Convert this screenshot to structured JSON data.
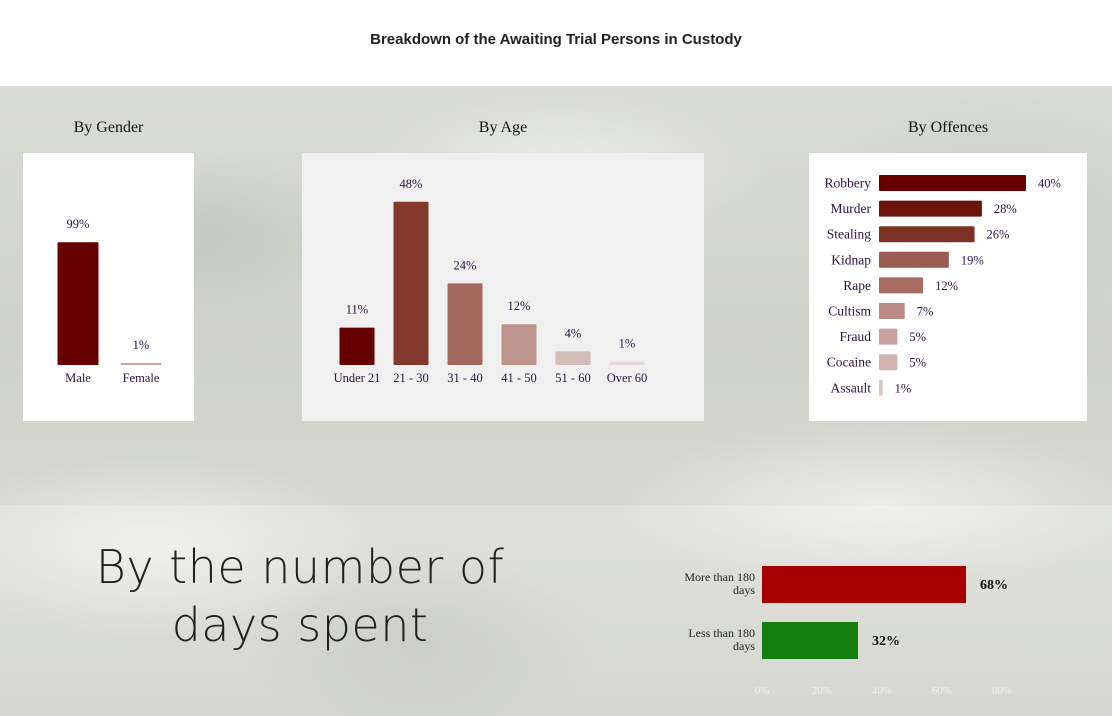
{
  "title": "Breakdown of the Awaiting Trial Persons in Custody",
  "colors": {
    "label_text": "#2a1340",
    "age_shades": [
      "#640000",
      "#84372b",
      "#a2685d",
      "#bd948c",
      "#d4bcb7",
      "#e2d8d6"
    ],
    "offence_shades": [
      "#640000",
      "#6b1409",
      "#7d3226",
      "#9a5c52",
      "#a86c62",
      "#b98b83",
      "#c7a29c",
      "#d2b4af",
      "#dcc7c3"
    ],
    "days_more": "#a80000",
    "days_less": "#137e0b"
  },
  "chart_data": [
    {
      "type": "bar",
      "title": "By Gender",
      "categories": [
        "Male",
        "Female"
      ],
      "values": [
        99,
        1
      ],
      "value_labels": [
        "99%",
        "1%"
      ],
      "ylim": [
        0,
        100
      ]
    },
    {
      "type": "bar",
      "title": "By Age",
      "categories": [
        "Under 21",
        "21 - 30",
        "31 - 40",
        "41 - 50",
        "51 - 60",
        "Over 60"
      ],
      "values": [
        11,
        48,
        24,
        12,
        4,
        1
      ],
      "value_labels": [
        "11%",
        "48%",
        "24%",
        "12%",
        "4%",
        "1%"
      ],
      "ylim": [
        0,
        50
      ]
    },
    {
      "type": "bar",
      "orientation": "horizontal",
      "title": "By Offences",
      "categories": [
        "Robbery",
        "Murder",
        "Stealing",
        "Kidnap",
        "Rape",
        "Cultism",
        "Fraud",
        "Cocaine",
        "Assault"
      ],
      "values": [
        40,
        28,
        26,
        19,
        12,
        7,
        5,
        5,
        1
      ],
      "value_labels": [
        "40%",
        "28%",
        "26%",
        "19%",
        "12%",
        "7%",
        "5%",
        "5%",
        "1%"
      ],
      "xlim": [
        0,
        40
      ]
    },
    {
      "type": "bar",
      "orientation": "horizontal",
      "title": "By the number of days spent",
      "categories": [
        "More than 180 days",
        "Less than 180 days"
      ],
      "category_lines": [
        [
          "More than 180",
          "days"
        ],
        [
          "Less than 180",
          "days"
        ]
      ],
      "values": [
        68,
        32
      ],
      "value_labels": [
        "68%",
        "32%"
      ],
      "xlim": [
        0,
        80
      ],
      "xticks": [
        "0%",
        "20%",
        "40%",
        "60%",
        "80%"
      ]
    }
  ]
}
